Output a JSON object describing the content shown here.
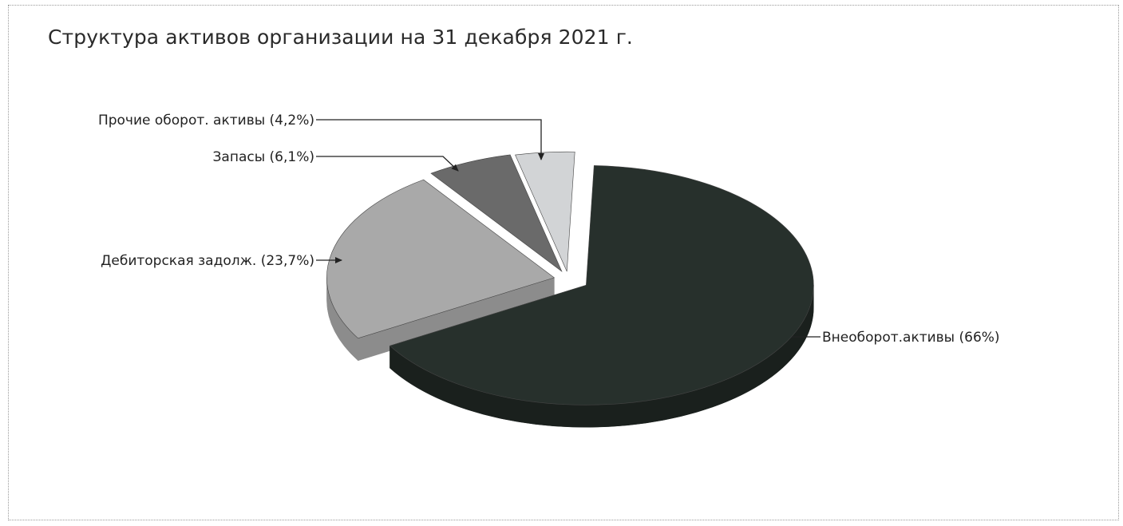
{
  "chart_data": {
    "type": "pie",
    "title": "Структура активов организации на 31 декабря 2021 г.",
    "categories": [
      "Внеоборот.активы",
      "Дебиторская задолж.",
      "Запасы",
      "Прочие оборот. активы"
    ],
    "values": [
      66,
      23.7,
      6.1,
      4.2
    ],
    "labels": [
      "Внеоборот.активы (66%)",
      "Дебиторская задолж. (23,7%)",
      "Запасы (6,1%)",
      "Прочие оборот. активы (4,2%)"
    ],
    "exploded": true,
    "three_d": true,
    "colors": [
      "#27302c",
      "#a9a9a9",
      "#6a6a6a",
      "#d2d4d6"
    ],
    "side_colors": [
      "#1a201d",
      "#8c8c8c",
      "#555555",
      "#b9bbbd"
    ]
  }
}
